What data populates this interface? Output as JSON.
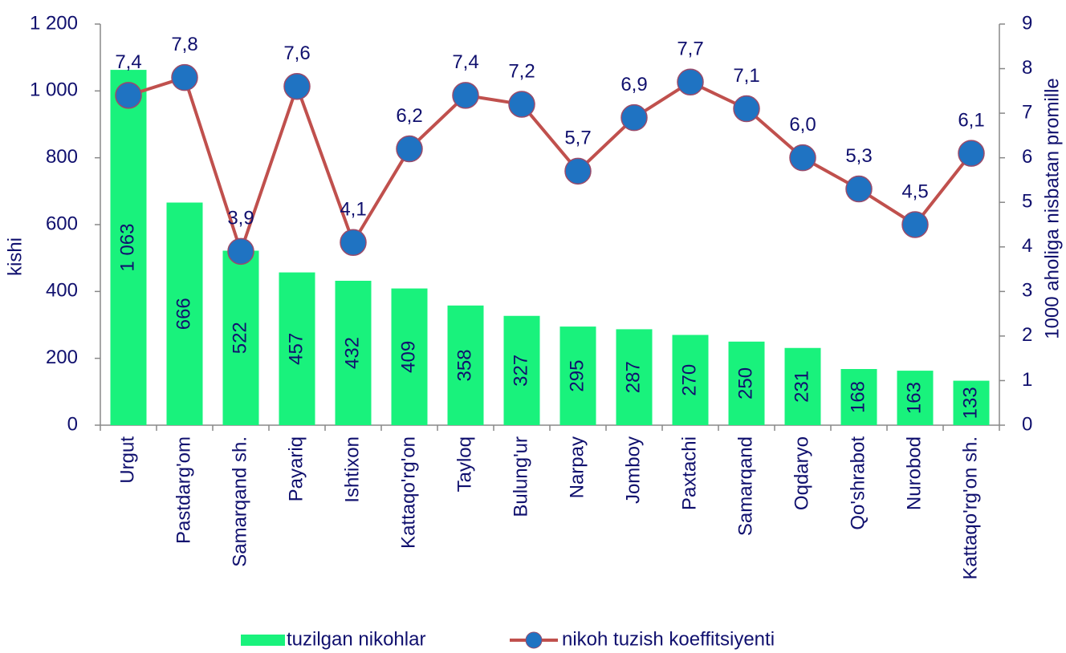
{
  "chart_data": {
    "type": "combo",
    "categories": [
      "Urgut",
      "Pastdarg'om",
      "Samarqand sh.",
      "Payariq",
      "Ishtixon",
      "Kattaqo'rg'on",
      "Tayloq",
      "Bulung'ur",
      "Narpay",
      "Jomboy",
      "Paxtachi",
      "Samarqand",
      "Oqdaryo",
      "Qo'shrabot",
      "Nurobod",
      "Kattaqo'rg'on sh."
    ],
    "series": [
      {
        "name": "tuzilgan nikohlar",
        "type": "bar",
        "color": "#19f27c",
        "values": [
          1063,
          666,
          522,
          457,
          432,
          409,
          358,
          327,
          295,
          287,
          270,
          250,
          231,
          168,
          163,
          133
        ],
        "value_labels": [
          "1 063",
          "666",
          "522",
          "457",
          "432",
          "409",
          "358",
          "327",
          "295",
          "287",
          "270",
          "250",
          "231",
          "168",
          "163",
          "133"
        ]
      },
      {
        "name": "nikoh tuzish koeffitsiyenti",
        "type": "line",
        "axis": "y2",
        "color": "#c0504d",
        "marker_color": "#1f73c2",
        "values": [
          7.4,
          7.8,
          3.9,
          7.6,
          4.1,
          6.2,
          7.4,
          7.2,
          5.7,
          6.9,
          7.7,
          7.1,
          6.0,
          5.3,
          4.5,
          6.1
        ],
        "value_labels": [
          "7,4",
          "7,8",
          "3,9",
          "7,6",
          "4,1",
          "6,2",
          "7,4",
          "7,2",
          "5,7",
          "6,9",
          "7,7",
          "7,1",
          "6,0",
          "5,3",
          "4,5",
          "6,1"
        ]
      }
    ],
    "ylabel": "kishi",
    "y2label": "1000 aholiga nisbatan promille",
    "ylim": [
      0,
      1200
    ],
    "yticks": [
      0,
      200,
      400,
      600,
      800,
      {
        "value": 1000,
        "label": "1 000"
      },
      {
        "value": 1200,
        "label": "1 200"
      }
    ],
    "y2lim": [
      0,
      9
    ],
    "y2ticks": [
      0,
      1,
      2,
      3,
      4,
      5,
      6,
      7,
      8,
      9
    ],
    "legend": "bottom"
  }
}
